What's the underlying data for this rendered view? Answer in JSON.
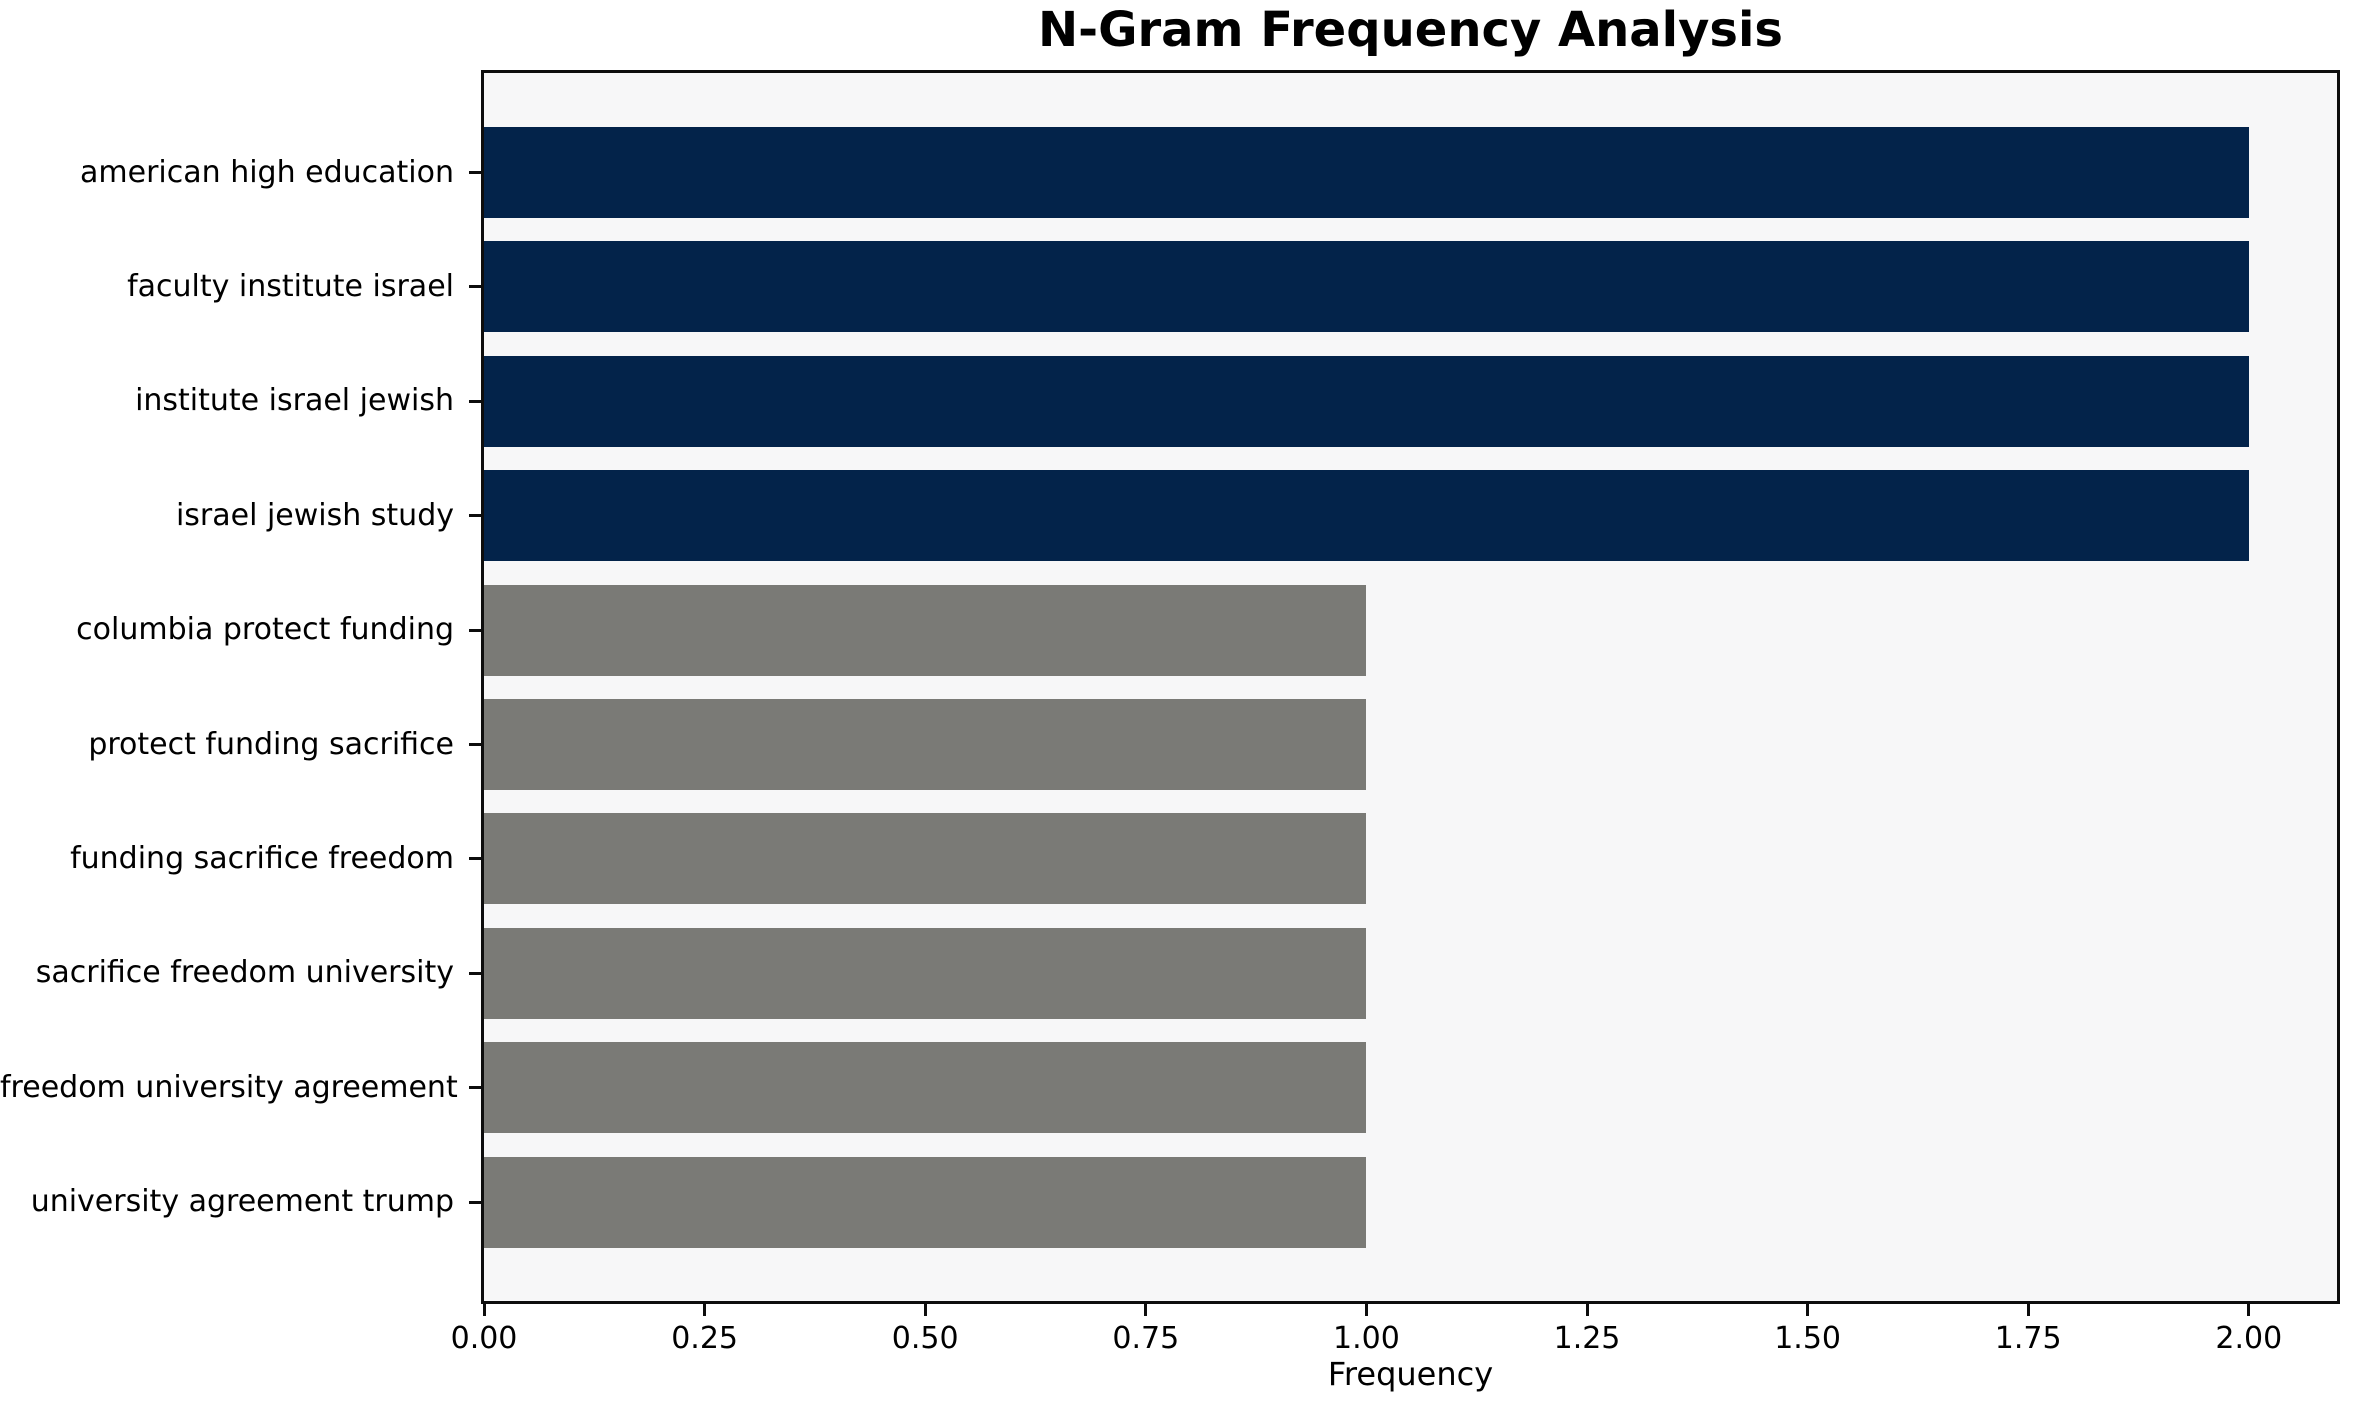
{
  "chart_data": {
    "type": "bar",
    "orientation": "horizontal",
    "title": "N-Gram Frequency Analysis",
    "xlabel": "Frequency",
    "ylabel": "",
    "categories": [
      "american high education",
      "faculty institute israel",
      "institute israel jewish",
      "israel jewish study",
      "columbia protect funding",
      "protect funding sacrifice",
      "funding sacrifice freedom",
      "sacrifice freedom university",
      "freedom university agreement",
      "university agreement trump"
    ],
    "values": [
      2,
      2,
      2,
      2,
      1,
      1,
      1,
      1,
      1,
      1
    ],
    "bar_colors": [
      "#03234a",
      "#03234a",
      "#03234a",
      "#03234a",
      "#7a7a76",
      "#7a7a76",
      "#7a7a76",
      "#7a7a76",
      "#7a7a76",
      "#7a7a76"
    ],
    "xlim": [
      0,
      2.1
    ],
    "xticks": [
      {
        "value": 0.0,
        "label": "0.00"
      },
      {
        "value": 0.25,
        "label": "0.25"
      },
      {
        "value": 0.5,
        "label": "0.50"
      },
      {
        "value": 0.75,
        "label": "0.75"
      },
      {
        "value": 1.0,
        "label": "1.00"
      },
      {
        "value": 1.25,
        "label": "1.25"
      },
      {
        "value": 1.5,
        "label": "1.50"
      },
      {
        "value": 1.75,
        "label": "1.75"
      },
      {
        "value": 2.0,
        "label": "2.00"
      }
    ],
    "grid": false,
    "legend": false,
    "colors": {
      "high_frequency_bar": "#03234a",
      "low_frequency_bar": "#7a7a76",
      "plot_background": "#f7f7f8",
      "figure_background": "#ffffff",
      "spine": "#0d0d0d",
      "text": "#000000"
    }
  }
}
